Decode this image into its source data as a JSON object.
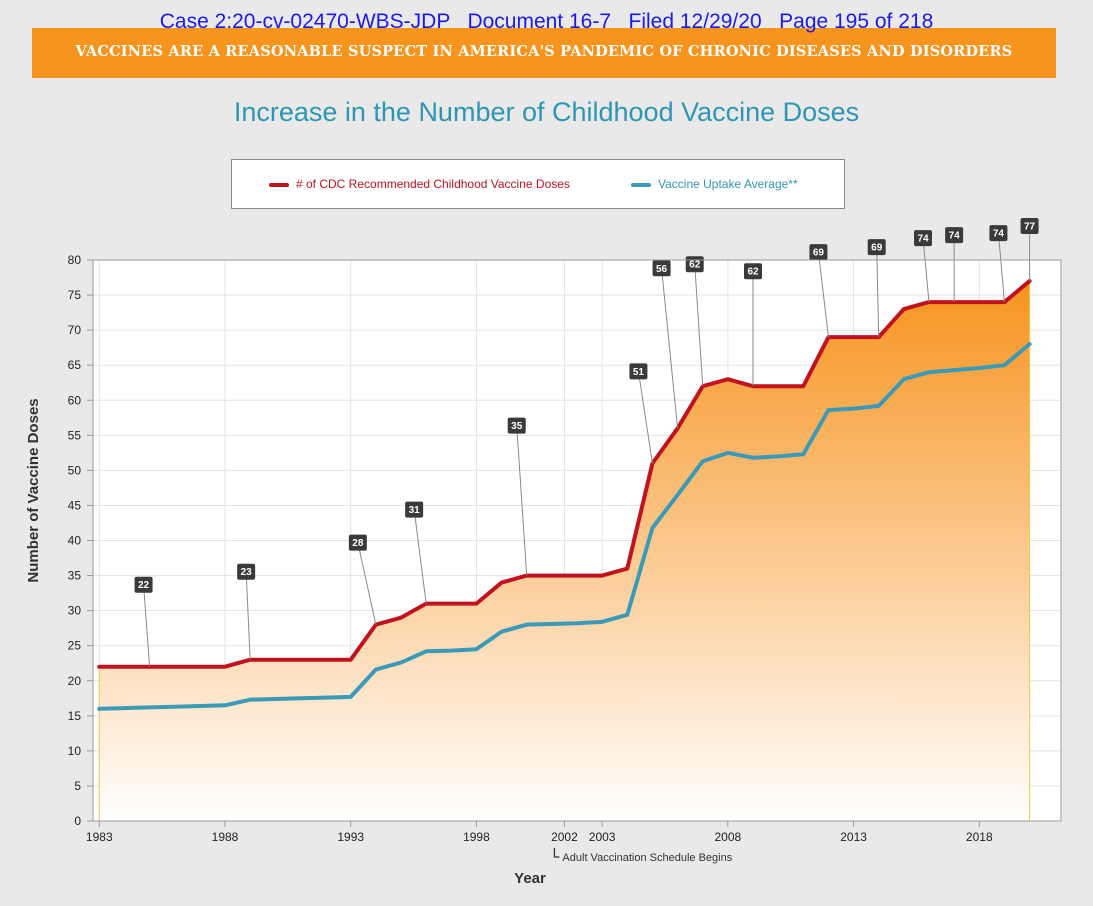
{
  "header": {
    "case_line": "Case 2:20-cv-02470-WBS-JDP   Document 16-7   Filed 12/29/20   Page 195 of 218",
    "banner": "VACCINES ARE A REASONABLE SUSPECT IN AMERICA'S PANDEMIC OF CHRONIC DISEASES AND DISORDERS"
  },
  "colors": {
    "banner": "#f7941d",
    "doses_line": "#c1121f",
    "uptake_line": "#3a9ab8",
    "area_top": "#f7931e",
    "area_bottom": "#ffffff",
    "title": "#2e96b5"
  },
  "chart_data": {
    "type": "area",
    "title": "Increase in the Number of Childhood Vaccine Doses",
    "xlabel": "Year",
    "ylabel": "Number of Vaccine Doses",
    "ylim": [
      0,
      80
    ],
    "xlim": [
      1982.75,
      2021.25
    ],
    "yticks": [
      0,
      5,
      10,
      15,
      20,
      25,
      30,
      35,
      40,
      45,
      50,
      55,
      60,
      65,
      70,
      75,
      80
    ],
    "xticks": [
      {
        "value": 1983,
        "label": "1983"
      },
      {
        "value": 1988,
        "label": "1988"
      },
      {
        "value": 1993,
        "label": "1993"
      },
      {
        "value": 1998,
        "label": "1998"
      },
      {
        "value": 2001.5,
        "label": "2002"
      },
      {
        "value": 2003,
        "label": "2003"
      },
      {
        "value": 2008,
        "label": "2008"
      },
      {
        "value": 2013,
        "label": "2013"
      },
      {
        "value": 2018,
        "label": "2018"
      }
    ],
    "x_annotation": {
      "x": 2001.5,
      "text": "Adult Vaccination Schedule Begins"
    },
    "grid": true,
    "legend_position": "top",
    "series": [
      {
        "name": "# of CDC Recommended Childhood Vaccine Doses",
        "color": "#c1121f",
        "points": [
          [
            1983,
            22
          ],
          [
            1984,
            22
          ],
          [
            1985,
            22
          ],
          [
            1986,
            22
          ],
          [
            1987,
            22
          ],
          [
            1988,
            22
          ],
          [
            1989,
            23
          ],
          [
            1990,
            23
          ],
          [
            1991,
            23
          ],
          [
            1992,
            23
          ],
          [
            1993,
            23
          ],
          [
            1994,
            28
          ],
          [
            1995,
            29
          ],
          [
            1996,
            31
          ],
          [
            1997,
            31
          ],
          [
            1998,
            31
          ],
          [
            1999,
            34
          ],
          [
            2000,
            35
          ],
          [
            2001,
            35
          ],
          [
            2002,
            35
          ],
          [
            2003,
            35
          ],
          [
            2004,
            36
          ],
          [
            2005,
            51
          ],
          [
            2006,
            56
          ],
          [
            2007,
            62
          ],
          [
            2008,
            63
          ],
          [
            2009,
            62
          ],
          [
            2010,
            62
          ],
          [
            2011,
            62
          ],
          [
            2012,
            69
          ],
          [
            2013,
            69
          ],
          [
            2014,
            69
          ],
          [
            2015,
            73
          ],
          [
            2016,
            74
          ],
          [
            2017,
            74
          ],
          [
            2018,
            74
          ],
          [
            2019,
            74
          ],
          [
            2020,
            77
          ]
        ]
      },
      {
        "name": "Vaccine Uptake Average**",
        "color": "#3a9ab8",
        "points": [
          [
            1983,
            16
          ],
          [
            1984,
            16.1
          ],
          [
            1985,
            16.2
          ],
          [
            1986,
            16.3
          ],
          [
            1987,
            16.4
          ],
          [
            1988,
            16.5
          ],
          [
            1989,
            17.3
          ],
          [
            1990,
            17.4
          ],
          [
            1991,
            17.5
          ],
          [
            1992,
            17.6
          ],
          [
            1993,
            17.7
          ],
          [
            1994,
            21.6
          ],
          [
            1995,
            22.6
          ],
          [
            1996,
            24.2
          ],
          [
            1997,
            24.3
          ],
          [
            1998,
            24.5
          ],
          [
            1999,
            27
          ],
          [
            2000,
            28
          ],
          [
            2001,
            28.1
          ],
          [
            2002,
            28.2
          ],
          [
            2003,
            28.4
          ],
          [
            2004,
            29.4
          ],
          [
            2005,
            41.8
          ],
          [
            2006,
            46.5
          ],
          [
            2007,
            51.3
          ],
          [
            2008,
            52.5
          ],
          [
            2009,
            51.8
          ],
          [
            2010,
            52
          ],
          [
            2011,
            52.3
          ],
          [
            2012,
            58.6
          ],
          [
            2013,
            58.8
          ],
          [
            2014,
            59.2
          ],
          [
            2015,
            63
          ],
          [
            2016,
            64
          ],
          [
            2017,
            64.3
          ],
          [
            2018,
            64.6
          ],
          [
            2019,
            65
          ],
          [
            2020,
            68
          ]
        ]
      }
    ],
    "callouts": [
      {
        "label": "22",
        "x": 1985
      },
      {
        "label": "23",
        "x": 1989
      },
      {
        "label": "28",
        "x": 1994
      },
      {
        "label": "31",
        "x": 1996
      },
      {
        "label": "35",
        "x": 2000
      },
      {
        "label": "51",
        "x": 2005
      },
      {
        "label": "56",
        "x": 2006
      },
      {
        "label": "62",
        "x": 2007
      },
      {
        "label": "62",
        "x": 2009
      },
      {
        "label": "69",
        "x": 2012
      },
      {
        "label": "69",
        "x": 2014
      },
      {
        "label": "74",
        "x": 2016
      },
      {
        "label": "74",
        "x": 2017
      },
      {
        "label": "74",
        "x": 2019
      },
      {
        "label": "77",
        "x": 2020
      }
    ]
  }
}
